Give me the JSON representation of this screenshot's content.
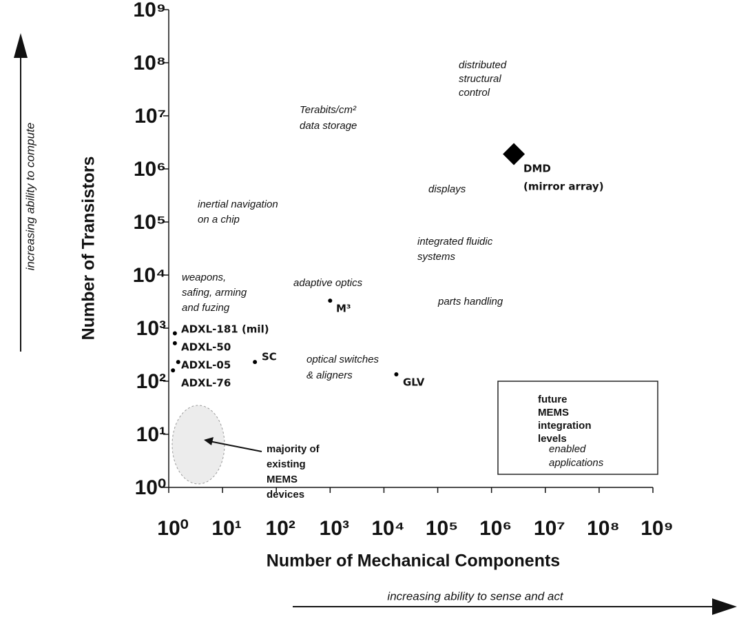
{
  "chart_data": {
    "type": "scatter",
    "xlabel": "Number of Mechanical Components",
    "ylabel": "Number of Transistors",
    "x_direction_label": "increasing ability to sense and act",
    "y_direction_label": "increasing ability to compute",
    "xscale": "log",
    "yscale": "log",
    "xlim": [
      1,
      1000000000
    ],
    "ylim": [
      1,
      1000000000
    ],
    "xticks": [
      {
        "value": 1,
        "label": "10⁰"
      },
      {
        "value": 10,
        "label": "10¹"
      },
      {
        "value": 100,
        "label": "10²"
      },
      {
        "value": 1000,
        "label": "10³"
      },
      {
        "value": 10000,
        "label": "10⁴"
      },
      {
        "value": 100000,
        "label": "10⁵"
      },
      {
        "value": 1000000,
        "label": "10⁶"
      },
      {
        "value": 10000000,
        "label": "10⁷"
      },
      {
        "value": 100000000,
        "label": "10⁸"
      },
      {
        "value": 1000000000,
        "label": "10⁹"
      }
    ],
    "yticks": [
      {
        "value": 1,
        "label": "10⁰"
      },
      {
        "value": 10,
        "label": "10¹"
      },
      {
        "value": 100,
        "label": "10²"
      },
      {
        "value": 1000,
        "label": "10³"
      },
      {
        "value": 10000,
        "label": "10⁴"
      },
      {
        "value": 100000,
        "label": "10⁵"
      },
      {
        "value": 1000000,
        "label": "10⁶"
      },
      {
        "value": 10000000,
        "label": "10⁷"
      },
      {
        "value": 100000000,
        "label": "10⁸"
      },
      {
        "value": 1000000000,
        "label": "10⁹"
      }
    ],
    "color": "#000000",
    "x": [
      1.3,
      1.3,
      1.5,
      1.2,
      40,
      1000,
      17000,
      2600000
    ],
    "values": [
      800,
      520,
      230,
      160,
      230,
      3300,
      135,
      1900000
    ],
    "point_labels": [
      [
        "ADXL-181 (mil)"
      ],
      [
        "ADXL-50"
      ],
      [
        "ADXL-05"
      ],
      [
        "ADXL-76"
      ],
      [
        "SC"
      ],
      [
        "M³"
      ],
      [
        "GLV"
      ],
      [
        "DMD",
        "(mirror array)"
      ]
    ],
    "annotations": [
      [
        "distributed",
        "structural",
        "control"
      ],
      [
        "Terabits/cm²",
        "data storage"
      ],
      [
        "displays"
      ],
      [
        "inertial navigation",
        "on a chip"
      ],
      [
        "integrated fluidic",
        "systems"
      ],
      [
        "weapons,",
        "safing, arming",
        "and fuzing"
      ],
      [
        "adaptive optics"
      ],
      [
        "parts handling"
      ],
      [
        "optical switches",
        "& aligners"
      ],
      [
        "majority of",
        "existing",
        "MEMS",
        "devices"
      ],
      [
        "future",
        "MEMS",
        "integration",
        "levels"
      ],
      [
        "enabled",
        "applications"
      ]
    ]
  }
}
